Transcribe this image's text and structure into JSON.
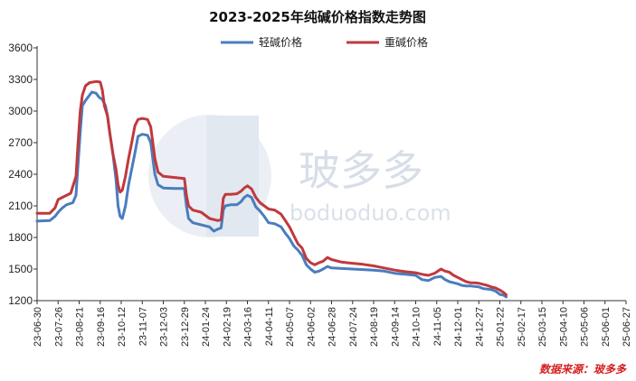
{
  "chart_data": {
    "type": "line",
    "title": "2023-2025年纯碱价格指数走势图",
    "source": "数据来源：玻多多",
    "watermark": {
      "text": "玻多多",
      "url": "boduoduo.com"
    },
    "ylim": [
      1200,
      3600
    ],
    "yticks": [
      1200,
      1500,
      1800,
      2100,
      2400,
      2700,
      3000,
      3300,
      3600
    ],
    "legend_position": "top",
    "x_labels": [
      "23-06-30",
      "23-07-26",
      "23-08-21",
      "23-09-16",
      "23-10-12",
      "23-11-07",
      "23-12-03",
      "23-12-29",
      "24-01-24",
      "24-02-19",
      "24-03-16",
      "24-04-11",
      "24-05-07",
      "24-06-02",
      "24-06-28",
      "24-07-24",
      "24-08-19",
      "24-09-14",
      "24-10-10",
      "24-11-05",
      "24-12-01",
      "24-12-27",
      "25-01-22",
      "25-02-17",
      "25-03-15",
      "25-04-10",
      "25-05-06",
      "25-06-01",
      "25-06-27"
    ],
    "series": [
      {
        "name": "轻碱价格",
        "color": "#4a7dbe",
        "points": [
          [
            0,
            1955
          ],
          [
            0.6,
            1960
          ],
          [
            0.85,
            2000
          ],
          [
            1.0,
            2040
          ],
          [
            1.2,
            2080
          ],
          [
            1.4,
            2110
          ],
          [
            1.7,
            2130
          ],
          [
            1.85,
            2200
          ],
          [
            1.95,
            2500
          ],
          [
            2.05,
            2800
          ],
          [
            2.15,
            3050
          ],
          [
            2.3,
            3100
          ],
          [
            2.45,
            3140
          ],
          [
            2.6,
            3180
          ],
          [
            2.8,
            3170
          ],
          [
            2.95,
            3130
          ],
          [
            3.1,
            3110
          ],
          [
            3.25,
            3050
          ],
          [
            3.35,
            2950
          ],
          [
            3.45,
            2800
          ],
          [
            3.6,
            2600
          ],
          [
            3.75,
            2350
          ],
          [
            3.85,
            2100
          ],
          [
            3.95,
            2000
          ],
          [
            4.05,
            1980
          ],
          [
            4.2,
            2100
          ],
          [
            4.35,
            2300
          ],
          [
            4.5,
            2450
          ],
          [
            4.65,
            2600
          ],
          [
            4.8,
            2760
          ],
          [
            5.0,
            2780
          ],
          [
            5.25,
            2770
          ],
          [
            5.4,
            2700
          ],
          [
            5.5,
            2550
          ],
          [
            5.6,
            2400
          ],
          [
            5.75,
            2300
          ],
          [
            6.0,
            2270
          ],
          [
            6.5,
            2265
          ],
          [
            7.0,
            2265
          ],
          [
            7.1,
            2100
          ],
          [
            7.2,
            1980
          ],
          [
            7.4,
            1940
          ],
          [
            7.8,
            1920
          ],
          [
            8.2,
            1900
          ],
          [
            8.4,
            1860
          ],
          [
            8.6,
            1880
          ],
          [
            8.75,
            1890
          ],
          [
            8.85,
            2060
          ],
          [
            8.95,
            2100
          ],
          [
            9.2,
            2110
          ],
          [
            9.5,
            2110
          ],
          [
            9.7,
            2140
          ],
          [
            9.85,
            2180
          ],
          [
            10.0,
            2200
          ],
          [
            10.2,
            2180
          ],
          [
            10.4,
            2090
          ],
          [
            10.6,
            2050
          ],
          [
            10.8,
            2000
          ],
          [
            11.0,
            1940
          ],
          [
            11.3,
            1930
          ],
          [
            11.6,
            1900
          ],
          [
            11.8,
            1840
          ],
          [
            12.0,
            1790
          ],
          [
            12.2,
            1720
          ],
          [
            12.4,
            1680
          ],
          [
            12.6,
            1630
          ],
          [
            12.8,
            1540
          ],
          [
            13.0,
            1500
          ],
          [
            13.2,
            1470
          ],
          [
            13.4,
            1480
          ],
          [
            13.6,
            1500
          ],
          [
            13.8,
            1525
          ],
          [
            14.0,
            1510
          ],
          [
            14.5,
            1505
          ],
          [
            15.0,
            1500
          ],
          [
            15.5,
            1495
          ],
          [
            16.0,
            1490
          ],
          [
            16.5,
            1480
          ],
          [
            17.0,
            1460
          ],
          [
            17.5,
            1450
          ],
          [
            18.0,
            1440
          ],
          [
            18.3,
            1400
          ],
          [
            18.6,
            1390
          ],
          [
            18.9,
            1420
          ],
          [
            19.2,
            1430
          ],
          [
            19.4,
            1400
          ],
          [
            19.6,
            1380
          ],
          [
            19.8,
            1370
          ],
          [
            20.0,
            1360
          ],
          [
            20.2,
            1345
          ],
          [
            20.4,
            1340
          ],
          [
            20.6,
            1340
          ],
          [
            20.8,
            1335
          ],
          [
            21.0,
            1330
          ],
          [
            21.2,
            1315
          ],
          [
            21.4,
            1310
          ],
          [
            21.6,
            1305
          ],
          [
            21.8,
            1290
          ],
          [
            22.0,
            1260
          ],
          [
            22.2,
            1250
          ],
          [
            22.3,
            1235
          ]
        ]
      },
      {
        "name": "重碱价格",
        "color": "#c0393d",
        "points": [
          [
            0,
            2030
          ],
          [
            0.6,
            2030
          ],
          [
            0.85,
            2080
          ],
          [
            1.0,
            2160
          ],
          [
            1.3,
            2190
          ],
          [
            1.6,
            2220
          ],
          [
            1.85,
            2380
          ],
          [
            1.95,
            2700
          ],
          [
            2.05,
            3000
          ],
          [
            2.15,
            3150
          ],
          [
            2.3,
            3240
          ],
          [
            2.5,
            3270
          ],
          [
            2.8,
            3280
          ],
          [
            3.0,
            3275
          ],
          [
            3.1,
            3200
          ],
          [
            3.2,
            3050
          ],
          [
            3.35,
            2950
          ],
          [
            3.45,
            2800
          ],
          [
            3.6,
            2600
          ],
          [
            3.75,
            2450
          ],
          [
            3.85,
            2300
          ],
          [
            3.95,
            2230
          ],
          [
            4.05,
            2250
          ],
          [
            4.2,
            2380
          ],
          [
            4.35,
            2550
          ],
          [
            4.5,
            2700
          ],
          [
            4.65,
            2860
          ],
          [
            4.8,
            2920
          ],
          [
            5.0,
            2930
          ],
          [
            5.25,
            2920
          ],
          [
            5.4,
            2850
          ],
          [
            5.5,
            2700
          ],
          [
            5.6,
            2550
          ],
          [
            5.75,
            2420
          ],
          [
            6.0,
            2380
          ],
          [
            6.5,
            2370
          ],
          [
            7.0,
            2360
          ],
          [
            7.1,
            2200
          ],
          [
            7.2,
            2100
          ],
          [
            7.4,
            2060
          ],
          [
            7.8,
            2040
          ],
          [
            8.2,
            1980
          ],
          [
            8.4,
            1970
          ],
          [
            8.6,
            1960
          ],
          [
            8.75,
            1970
          ],
          [
            8.85,
            2170
          ],
          [
            8.95,
            2210
          ],
          [
            9.2,
            2210
          ],
          [
            9.5,
            2215
          ],
          [
            9.7,
            2240
          ],
          [
            9.85,
            2270
          ],
          [
            10.0,
            2290
          ],
          [
            10.2,
            2260
          ],
          [
            10.4,
            2180
          ],
          [
            10.6,
            2130
          ],
          [
            10.8,
            2100
          ],
          [
            11.0,
            2070
          ],
          [
            11.3,
            2060
          ],
          [
            11.6,
            2020
          ],
          [
            11.8,
            1960
          ],
          [
            12.0,
            1900
          ],
          [
            12.2,
            1820
          ],
          [
            12.4,
            1740
          ],
          [
            12.6,
            1700
          ],
          [
            12.8,
            1600
          ],
          [
            13.0,
            1560
          ],
          [
            13.2,
            1540
          ],
          [
            13.4,
            1560
          ],
          [
            13.6,
            1575
          ],
          [
            13.8,
            1610
          ],
          [
            14.0,
            1590
          ],
          [
            14.5,
            1565
          ],
          [
            15.0,
            1555
          ],
          [
            15.5,
            1545
          ],
          [
            16.0,
            1530
          ],
          [
            16.5,
            1510
          ],
          [
            17.0,
            1490
          ],
          [
            17.5,
            1475
          ],
          [
            18.0,
            1465
          ],
          [
            18.3,
            1450
          ],
          [
            18.6,
            1440
          ],
          [
            18.9,
            1460
          ],
          [
            19.2,
            1500
          ],
          [
            19.4,
            1480
          ],
          [
            19.6,
            1470
          ],
          [
            19.8,
            1440
          ],
          [
            20.0,
            1420
          ],
          [
            20.2,
            1400
          ],
          [
            20.4,
            1380
          ],
          [
            20.6,
            1370
          ],
          [
            20.8,
            1370
          ],
          [
            21.0,
            1365
          ],
          [
            21.2,
            1355
          ],
          [
            21.4,
            1345
          ],
          [
            21.6,
            1330
          ],
          [
            21.8,
            1320
          ],
          [
            22.0,
            1300
          ],
          [
            22.2,
            1275
          ],
          [
            22.3,
            1255
          ]
        ]
      }
    ]
  }
}
